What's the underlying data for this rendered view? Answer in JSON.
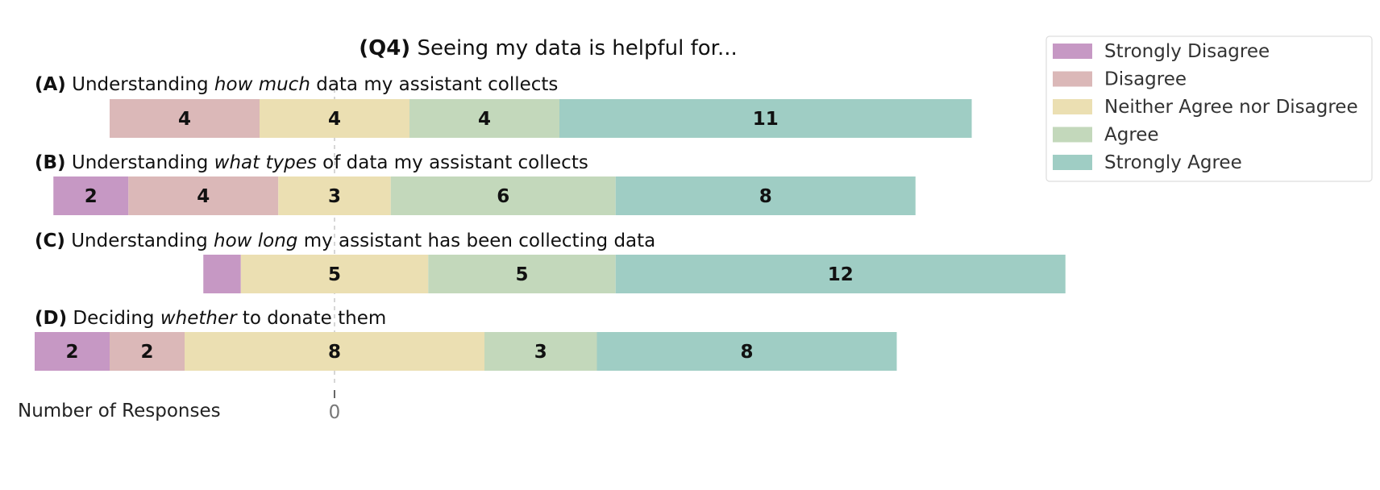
{
  "chart_data": {
    "type": "bar",
    "orientation": "horizontal",
    "stacked": "diverging",
    "title_prefix": "(Q4)",
    "title": "Seeing my data is helpful for...",
    "xlabel": "Number of Responses",
    "xticks": [
      0
    ],
    "grid": false,
    "legend_position": "top-right",
    "legend": [
      {
        "name": "Strongly Disagree",
        "color": "#c698c4"
      },
      {
        "name": "Disagree",
        "color": "#dbb8b8"
      },
      {
        "name": "Neither Agree nor Disagree",
        "color": "#ebdfb2"
      },
      {
        "name": "Agree",
        "color": "#c3d8bb"
      },
      {
        "name": "Strongly Agree",
        "color": "#9fcdc4"
      }
    ],
    "questions": [
      {
        "letter": "(A)",
        "parts": [
          {
            "text": " Understanding ",
            "italic": false
          },
          {
            "text": "how much",
            "italic": true
          },
          {
            "text": " data my assistant collects",
            "italic": false
          }
        ],
        "values": [
          0,
          4,
          4,
          4,
          11
        ],
        "labels": [
          "",
          "4",
          "4",
          "4",
          "11"
        ]
      },
      {
        "letter": "(B)",
        "parts": [
          {
            "text": " Understanding ",
            "italic": false
          },
          {
            "text": "what types",
            "italic": true
          },
          {
            "text": " of data my assistant collects",
            "italic": false
          }
        ],
        "values": [
          2,
          4,
          3,
          6,
          8
        ],
        "labels": [
          "2",
          "4",
          "3",
          "6",
          "8"
        ]
      },
      {
        "letter": "(C)",
        "parts": [
          {
            "text": " Understanding ",
            "italic": false
          },
          {
            "text": "how long",
            "italic": true
          },
          {
            "text": " my assistant has been collecting data",
            "italic": false
          }
        ],
        "values": [
          1,
          0,
          5,
          5,
          12
        ],
        "labels": [
          "",
          "",
          "5",
          "5",
          "12"
        ]
      },
      {
        "letter": "(D)",
        "parts": [
          {
            "text": " Deciding ",
            "italic": false
          },
          {
            "text": "whether",
            "italic": true
          },
          {
            "text": " to donate them",
            "italic": false
          }
        ],
        "values": [
          2,
          2,
          8,
          3,
          8
        ],
        "labels": [
          "2",
          "2",
          "8",
          "3",
          "8"
        ]
      }
    ]
  }
}
